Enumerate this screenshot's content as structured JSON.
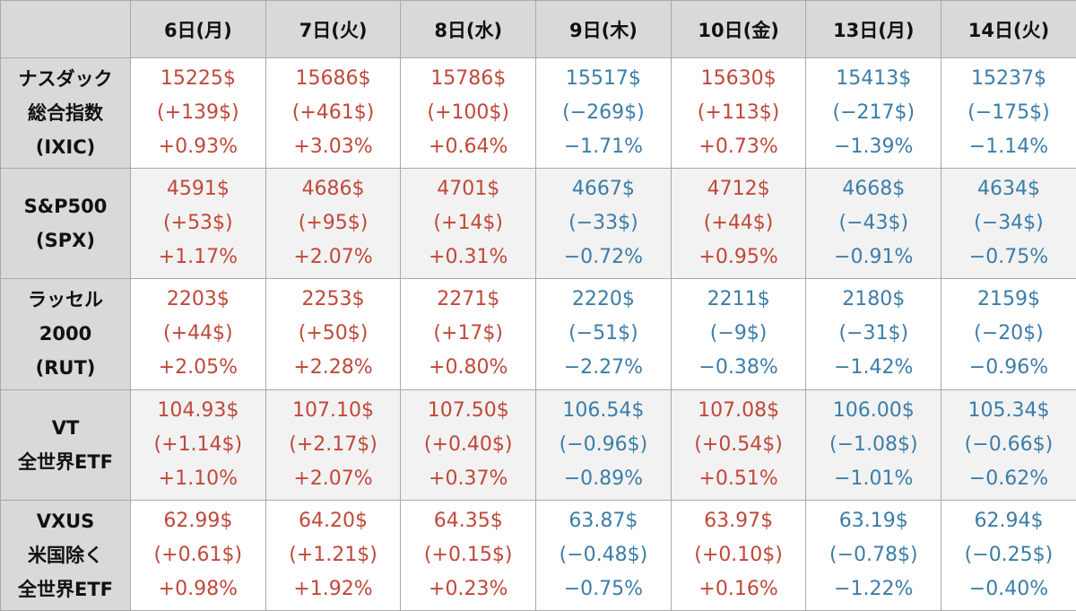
{
  "header": {
    "days": [
      "6日(月)",
      "7日(火)",
      "8日(水)",
      "9日(木)",
      "10日(金)",
      "13日(月)",
      "14日(火)"
    ]
  },
  "colors": {
    "up": "#c0483a",
    "down": "#3c7da8",
    "header_bg": "#d9d9d9"
  },
  "rows": [
    {
      "label": [
        "ナスダック",
        "総合指数",
        "(IXIC)"
      ],
      "cells": [
        {
          "dir": "up",
          "price": "15225$",
          "change": "(+139$)",
          "pct": "+0.93%"
        },
        {
          "dir": "up",
          "price": "15686$",
          "change": "(+461$)",
          "pct": "+3.03%"
        },
        {
          "dir": "up",
          "price": "15786$",
          "change": "(+100$)",
          "pct": "+0.64%"
        },
        {
          "dir": "down",
          "price": "15517$",
          "change": "(−269$)",
          "pct": "−1.71%"
        },
        {
          "dir": "up",
          "price": "15630$",
          "change": "(+113$)",
          "pct": "+0.73%"
        },
        {
          "dir": "down",
          "price": "15413$",
          "change": "(−217$)",
          "pct": "−1.39%"
        },
        {
          "dir": "down",
          "price": "15237$",
          "change": "(−175$)",
          "pct": "−1.14%"
        }
      ]
    },
    {
      "label": [
        "S&P500",
        "(SPX)"
      ],
      "cells": [
        {
          "dir": "up",
          "price": "4591$",
          "change": "(+53$)",
          "pct": "+1.17%"
        },
        {
          "dir": "up",
          "price": "4686$",
          "change": "(+95$)",
          "pct": "+2.07%"
        },
        {
          "dir": "up",
          "price": "4701$",
          "change": "(+14$)",
          "pct": "+0.31%"
        },
        {
          "dir": "down",
          "price": "4667$",
          "change": "(−33$)",
          "pct": "−0.72%"
        },
        {
          "dir": "up",
          "price": "4712$",
          "change": "(+44$)",
          "pct": "+0.95%"
        },
        {
          "dir": "down",
          "price": "4668$",
          "change": "(−43$)",
          "pct": "−0.91%"
        },
        {
          "dir": "down",
          "price": "4634$",
          "change": "(−34$)",
          "pct": "−0.75%"
        }
      ]
    },
    {
      "label": [
        "ラッセル",
        "2000",
        "(RUT)"
      ],
      "cells": [
        {
          "dir": "up",
          "price": "2203$",
          "change": "(+44$)",
          "pct": "+2.05%"
        },
        {
          "dir": "up",
          "price": "2253$",
          "change": "(+50$)",
          "pct": "+2.28%"
        },
        {
          "dir": "up",
          "price": "2271$",
          "change": "(+17$)",
          "pct": "+0.80%"
        },
        {
          "dir": "down",
          "price": "2220$",
          "change": "(−51$)",
          "pct": "−2.27%"
        },
        {
          "dir": "down",
          "price": "2211$",
          "change": "(−9$)",
          "pct": "−0.38%"
        },
        {
          "dir": "down",
          "price": "2180$",
          "change": "(−31$)",
          "pct": "−1.42%"
        },
        {
          "dir": "down",
          "price": "2159$",
          "change": "(−20$)",
          "pct": "−0.96%"
        }
      ]
    },
    {
      "label": [
        "VT",
        "全世界ETF"
      ],
      "cells": [
        {
          "dir": "up",
          "price": "104.93$",
          "change": "(+1.14$)",
          "pct": "+1.10%"
        },
        {
          "dir": "up",
          "price": "107.10$",
          "change": "(+2.17$)",
          "pct": "+2.07%"
        },
        {
          "dir": "up",
          "price": "107.50$",
          "change": "(+0.40$)",
          "pct": "+0.37%"
        },
        {
          "dir": "down",
          "price": "106.54$",
          "change": "(−0.96$)",
          "pct": "−0.89%"
        },
        {
          "dir": "up",
          "price": "107.08$",
          "change": "(+0.54$)",
          "pct": "+0.51%"
        },
        {
          "dir": "down",
          "price": "106.00$",
          "change": "(−1.08$)",
          "pct": "−1.01%"
        },
        {
          "dir": "down",
          "price": "105.34$",
          "change": "(−0.66$)",
          "pct": "−0.62%"
        }
      ]
    },
    {
      "label": [
        "VXUS",
        "米国除く",
        "全世界ETF"
      ],
      "cells": [
        {
          "dir": "up",
          "price": "62.99$",
          "change": "(+0.61$)",
          "pct": "+0.98%"
        },
        {
          "dir": "up",
          "price": "64.20$",
          "change": "(+1.21$)",
          "pct": "+1.92%"
        },
        {
          "dir": "up",
          "price": "64.35$",
          "change": "(+0.15$)",
          "pct": "+0.23%"
        },
        {
          "dir": "down",
          "price": "63.87$",
          "change": "(−0.48$)",
          "pct": "−0.75%"
        },
        {
          "dir": "up",
          "price": "63.97$",
          "change": "(+0.10$)",
          "pct": "+0.16%"
        },
        {
          "dir": "down",
          "price": "63.19$",
          "change": "(−0.78$)",
          "pct": "−1.22%"
        },
        {
          "dir": "down",
          "price": "62.94$",
          "change": "(−0.25$)",
          "pct": "−0.40%"
        }
      ]
    }
  ]
}
